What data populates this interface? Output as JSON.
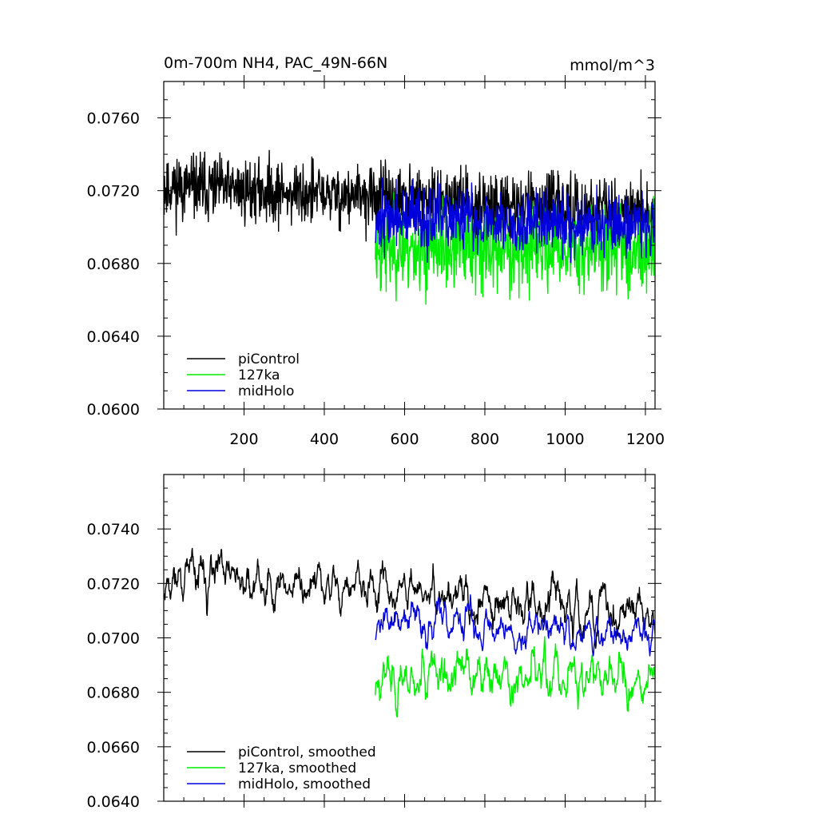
{
  "chart_data": [
    {
      "type": "line",
      "title_left": "0m-700m NH4, PAC_49N-66N",
      "title_right": "mmol/m^3",
      "xlim": [
        0,
        1224
      ],
      "ylim": [
        0.06,
        0.078
      ],
      "xticks": [
        200,
        400,
        600,
        800,
        1000,
        1200
      ],
      "xtick_labels": [
        "200",
        "400",
        "600",
        "800",
        "1000",
        "1200"
      ],
      "yticks": [
        0.06,
        0.064,
        0.068,
        0.072,
        0.076
      ],
      "ytick_labels": [
        "0.0600",
        "0.0640",
        "0.0680",
        "0.0720",
        "0.0760"
      ],
      "legend_position": "bottom-left",
      "series": [
        {
          "name": "piControl",
          "color": "#000000",
          "x_start": 1,
          "x_end": 1224,
          "mean": 0.0715,
          "amplitude": 0.0016,
          "trend": -0.0015,
          "noise_seed": 11
        },
        {
          "name": "127ka",
          "color": "#00ee00",
          "x_start": 527,
          "x_end": 1224,
          "mean": 0.0688,
          "amplitude": 0.0021,
          "trend": 0.0,
          "noise_seed": 23
        },
        {
          "name": "midHolo",
          "color": "#0000dd",
          "x_start": 527,
          "x_end": 1224,
          "mean": 0.0703,
          "amplitude": 0.0016,
          "trend": -0.0004,
          "noise_seed": 37
        }
      ]
    },
    {
      "type": "line",
      "xlim": [
        0,
        1224
      ],
      "ylim": [
        0.064,
        0.076
      ],
      "xticks": [
        200,
        400,
        600,
        800,
        1000,
        1200
      ],
      "yticks": [
        0.064,
        0.066,
        0.068,
        0.07,
        0.072,
        0.074
      ],
      "ytick_labels": [
        "0.0640",
        "0.0660",
        "0.0680",
        "0.0700",
        "0.0720",
        "0.0740"
      ],
      "legend_position": "bottom-left",
      "series": [
        {
          "name": "piControl, smoothed",
          "color": "#000000",
          "x_start": 1,
          "x_end": 1224,
          "mean": 0.0716,
          "amplitude": 0.0011,
          "trend": -0.0014,
          "noise_seed": 11
        },
        {
          "name": "127ka, smoothed",
          "color": "#00ee00",
          "x_start": 527,
          "x_end": 1224,
          "mean": 0.0686,
          "amplitude": 0.0012,
          "trend": 0.0,
          "noise_seed": 23
        },
        {
          "name": "midHolo, smoothed",
          "color": "#0000dd",
          "x_start": 527,
          "x_end": 1224,
          "mean": 0.0704,
          "amplitude": 0.0009,
          "trend": -0.0005,
          "noise_seed": 37
        }
      ]
    }
  ]
}
